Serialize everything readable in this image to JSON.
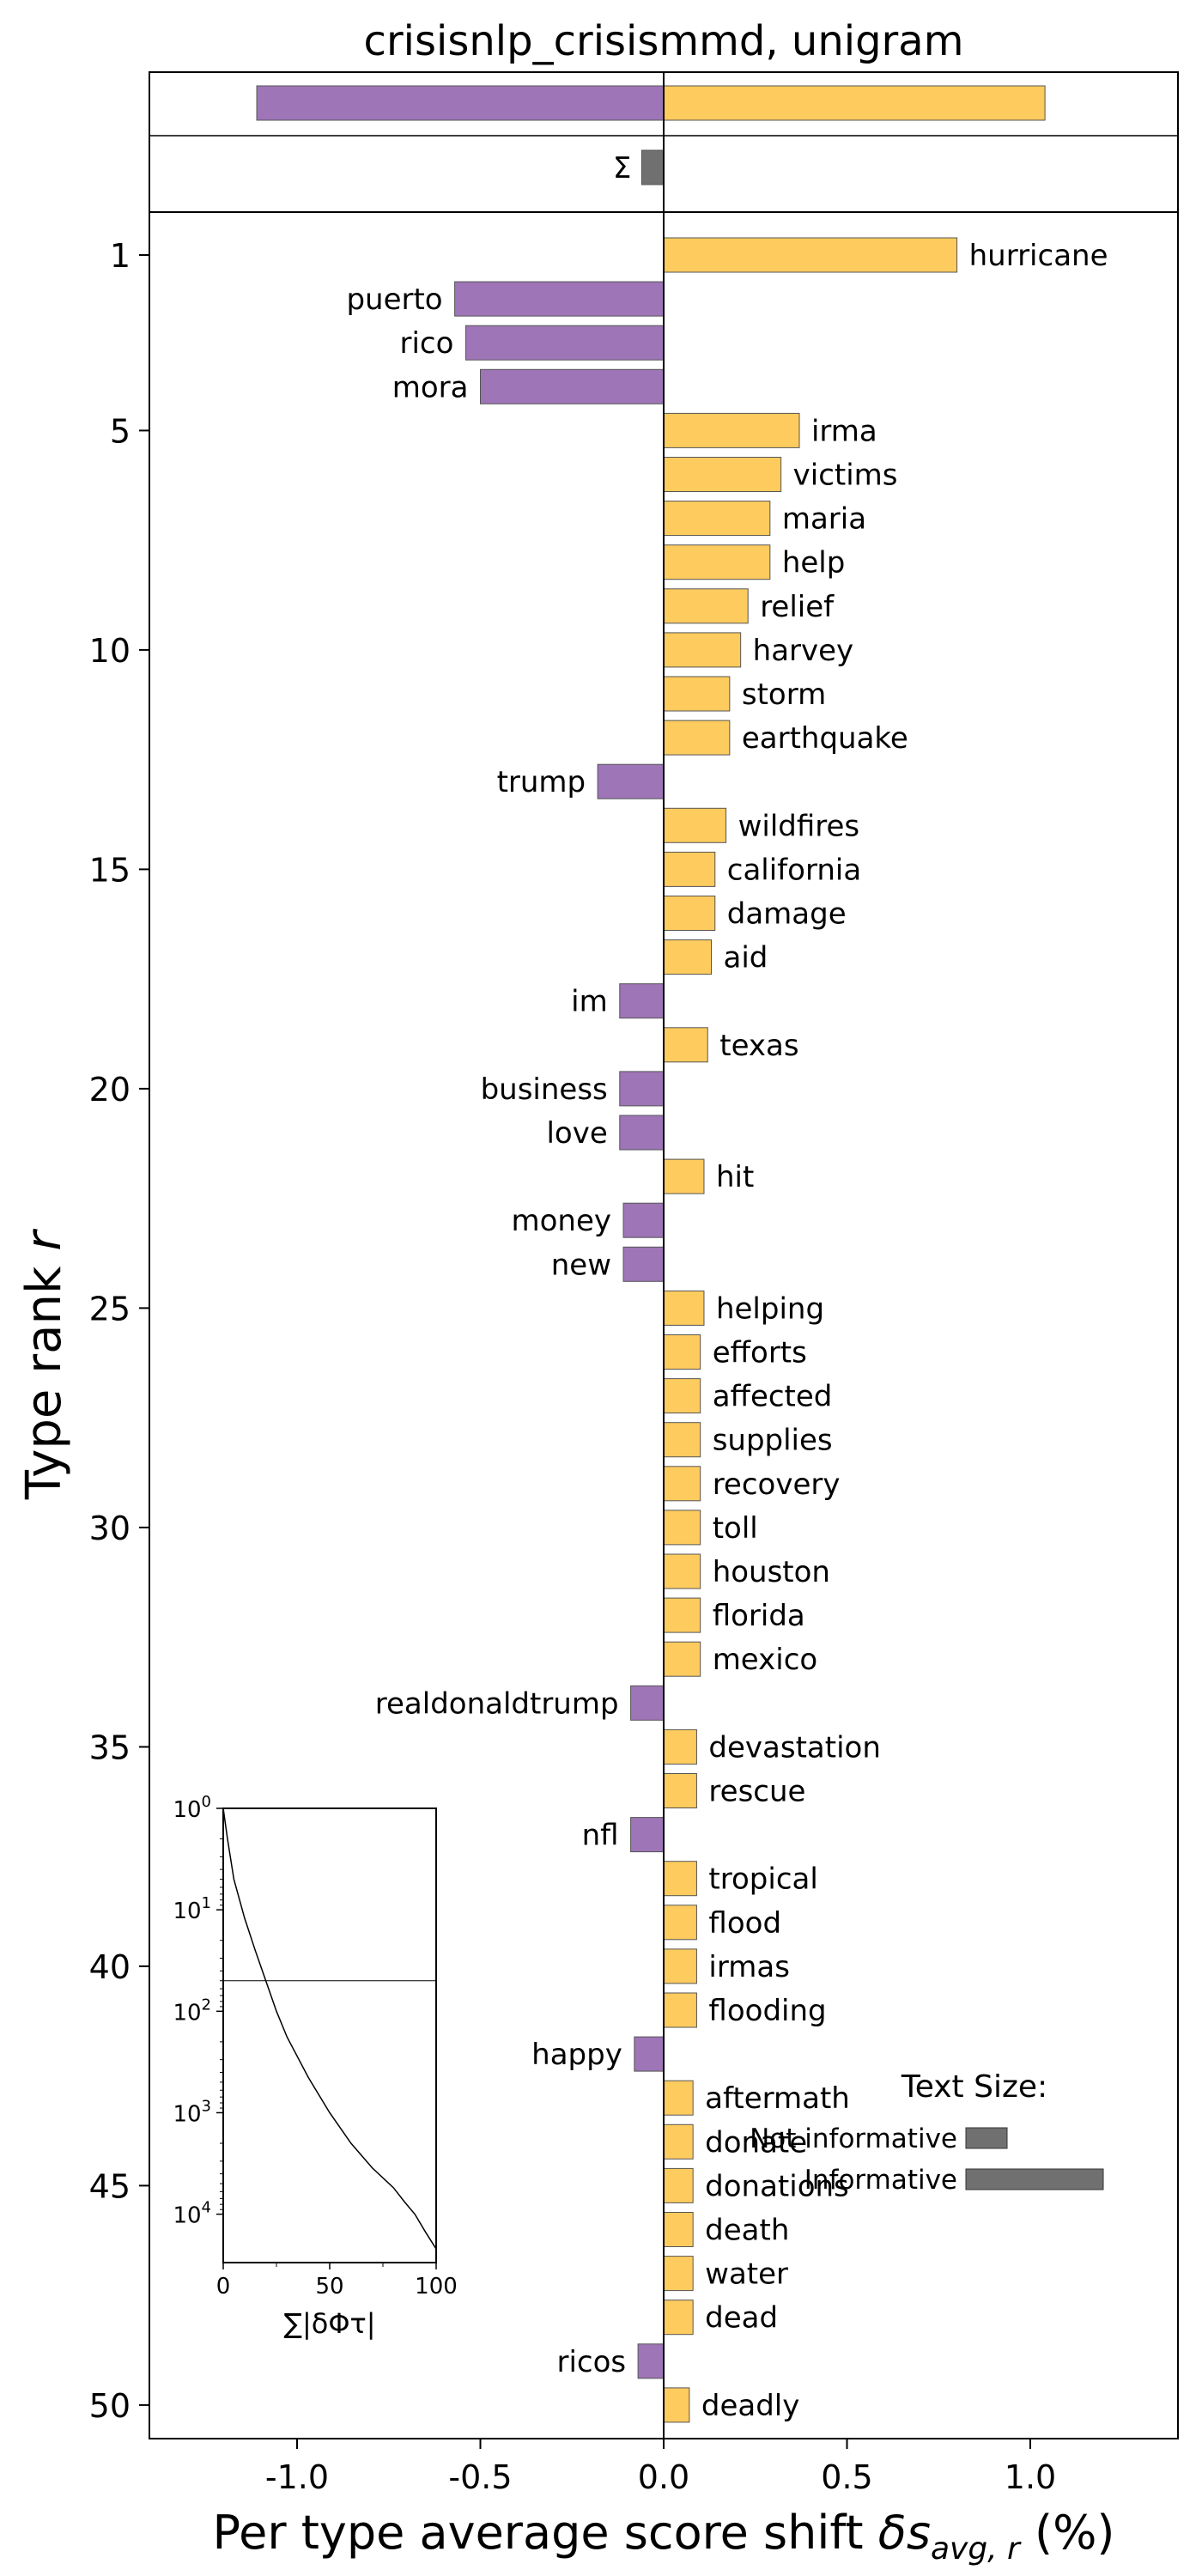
{
  "chart_data": {
    "type": "bar",
    "orientation": "horizontal",
    "title": "crisisnlp_crisismmd, unigram",
    "xlabel": "Per type average score shift δs_avg,r (%)",
    "ylabel": "Type rank r",
    "xlim": [
      -1.4,
      1.4
    ],
    "xticks": [
      "-1.0",
      "-0.5",
      "0.0",
      "0.5",
      "1.0"
    ],
    "yticks": [
      "1",
      "5",
      "10",
      "15",
      "20",
      "25",
      "30",
      "35",
      "40",
      "45",
      "50"
    ],
    "colors": {
      "positive": "#fecb5e",
      "negative": "#9e75b7",
      "total": "#707070"
    },
    "totals": {
      "negative": -1.11,
      "positive": 1.04,
      "sigma_label": "Σ",
      "sigma_value": -0.06
    },
    "series": [
      {
        "rank": 1,
        "word": "hurricane",
        "value": 0.8
      },
      {
        "rank": 2,
        "word": "puerto",
        "value": -0.57
      },
      {
        "rank": 3,
        "word": "rico",
        "value": -0.54
      },
      {
        "rank": 4,
        "word": "mora",
        "value": -0.5
      },
      {
        "rank": 5,
        "word": "irma",
        "value": 0.37
      },
      {
        "rank": 6,
        "word": "victims",
        "value": 0.32
      },
      {
        "rank": 7,
        "word": "maria",
        "value": 0.29
      },
      {
        "rank": 8,
        "word": "help",
        "value": 0.29
      },
      {
        "rank": 9,
        "word": "relief",
        "value": 0.23
      },
      {
        "rank": 10,
        "word": "harvey",
        "value": 0.21
      },
      {
        "rank": 11,
        "word": "storm",
        "value": 0.18
      },
      {
        "rank": 12,
        "word": "earthquake",
        "value": 0.18
      },
      {
        "rank": 13,
        "word": "trump",
        "value": -0.18
      },
      {
        "rank": 14,
        "word": "wildfires",
        "value": 0.17
      },
      {
        "rank": 15,
        "word": "california",
        "value": 0.14
      },
      {
        "rank": 16,
        "word": "damage",
        "value": 0.14
      },
      {
        "rank": 17,
        "word": "aid",
        "value": 0.13
      },
      {
        "rank": 18,
        "word": "im",
        "value": -0.12
      },
      {
        "rank": 19,
        "word": "texas",
        "value": 0.12
      },
      {
        "rank": 20,
        "word": "business",
        "value": -0.12
      },
      {
        "rank": 21,
        "word": "love",
        "value": -0.12
      },
      {
        "rank": 22,
        "word": "hit",
        "value": 0.11
      },
      {
        "rank": 23,
        "word": "money",
        "value": -0.11
      },
      {
        "rank": 24,
        "word": "new",
        "value": -0.11
      },
      {
        "rank": 25,
        "word": "helping",
        "value": 0.11
      },
      {
        "rank": 26,
        "word": "efforts",
        "value": 0.1
      },
      {
        "rank": 27,
        "word": "affected",
        "value": 0.1
      },
      {
        "rank": 28,
        "word": "supplies",
        "value": 0.1
      },
      {
        "rank": 29,
        "word": "recovery",
        "value": 0.1
      },
      {
        "rank": 30,
        "word": "toll",
        "value": 0.1
      },
      {
        "rank": 31,
        "word": "houston",
        "value": 0.1
      },
      {
        "rank": 32,
        "word": "florida",
        "value": 0.1
      },
      {
        "rank": 33,
        "word": "mexico",
        "value": 0.1
      },
      {
        "rank": 34,
        "word": "realdonaldtrump",
        "value": -0.09
      },
      {
        "rank": 35,
        "word": "devastation",
        "value": 0.09
      },
      {
        "rank": 36,
        "word": "rescue",
        "value": 0.09
      },
      {
        "rank": 37,
        "word": "nfl",
        "value": -0.09
      },
      {
        "rank": 38,
        "word": "tropical",
        "value": 0.09
      },
      {
        "rank": 39,
        "word": "flood",
        "value": 0.09
      },
      {
        "rank": 40,
        "word": "irmas",
        "value": 0.09
      },
      {
        "rank": 41,
        "word": "flooding",
        "value": 0.09
      },
      {
        "rank": 42,
        "word": "happy",
        "value": -0.08
      },
      {
        "rank": 43,
        "word": "aftermath",
        "value": 0.08
      },
      {
        "rank": 44,
        "word": "donate",
        "value": 0.08
      },
      {
        "rank": 45,
        "word": "donations",
        "value": 0.08
      },
      {
        "rank": 46,
        "word": "death",
        "value": 0.08
      },
      {
        "rank": 47,
        "word": "water",
        "value": 0.08
      },
      {
        "rank": 48,
        "word": "dead",
        "value": 0.08
      },
      {
        "rank": 49,
        "word": "ricos",
        "value": -0.07
      },
      {
        "rank": 50,
        "word": "deadly",
        "value": 0.07
      }
    ],
    "text_size_legend": {
      "title": "Text Size:",
      "items": [
        {
          "label": "Not informative",
          "value": 0.3
        },
        {
          "label": "Informative",
          "value": 1.0
        }
      ]
    },
    "inset": {
      "ylabel_ticks": [
        "10^0",
        "10^1",
        "10^2",
        "10^3",
        "10^4"
      ],
      "xticks": [
        "0",
        "50",
        "100"
      ],
      "xlabel": "∑|δΦτ|",
      "xlim": [
        0,
        100
      ],
      "threshold_rank": 50,
      "curve": [
        [
          0,
          1
        ],
        [
          2,
          2
        ],
        [
          5,
          5
        ],
        [
          10,
          12
        ],
        [
          15,
          25
        ],
        [
          20,
          50
        ],
        [
          25,
          100
        ],
        [
          30,
          180
        ],
        [
          40,
          450
        ],
        [
          50,
          1000
        ],
        [
          60,
          2000
        ],
        [
          70,
          3500
        ],
        [
          80,
          5500
        ],
        [
          85,
          7500
        ],
        [
          90,
          10000
        ],
        [
          95,
          15000
        ],
        [
          100,
          22000
        ]
      ]
    }
  }
}
